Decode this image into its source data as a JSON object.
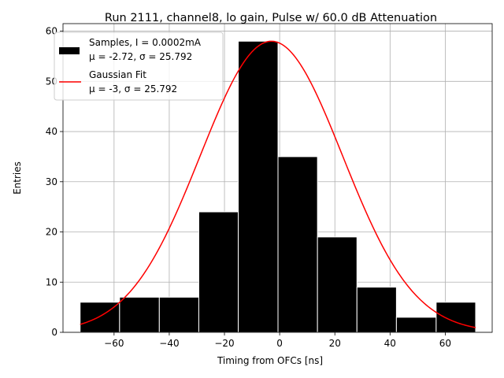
{
  "chart_data": {
    "type": "bar",
    "title": "Run 2111, channel8, lo gain, Pulse w/ 60.0 dB Attenuation",
    "xlabel": "Timing from OFCs [ns]",
    "ylabel": "Entries",
    "xlim": [
      -78.5,
      77
    ],
    "ylim": [
      0,
      61.5
    ],
    "xticks": [
      -60,
      -40,
      -20,
      0,
      20,
      40,
      60
    ],
    "yticks": [
      0,
      10,
      20,
      30,
      40,
      50,
      60
    ],
    "xtick_labels": [
      "−60",
      "−40",
      "−20",
      "0",
      "20",
      "40",
      "60"
    ],
    "ytick_labels": [
      "0",
      "10",
      "20",
      "30",
      "40",
      "50",
      "60"
    ],
    "grid": true,
    "legend_position": "top-left",
    "bin_edges": [
      -72.3,
      -58.0,
      -43.6,
      -29.3,
      -15.0,
      -0.6,
      13.7,
      28.0,
      42.3,
      56.7,
      71.0
    ],
    "values": [
      6,
      7,
      7,
      24,
      58,
      35,
      19,
      9,
      3,
      6
    ],
    "bar_color": "#000000",
    "fit": {
      "mu": -3,
      "sigma": 25.792,
      "amplitude": 58,
      "x_range": [
        -72.3,
        71.0
      ],
      "color": "#ff0000"
    },
    "series": [
      {
        "name": "Samples, I = 0.0002mA",
        "name_line2": "μ = -2.72, σ = 25.792",
        "kind": "histogram",
        "color": "#000000"
      },
      {
        "name": "Gaussian Fit",
        "name_line2": "μ = -3, σ = 25.792",
        "kind": "line",
        "color": "#ff0000"
      }
    ]
  }
}
